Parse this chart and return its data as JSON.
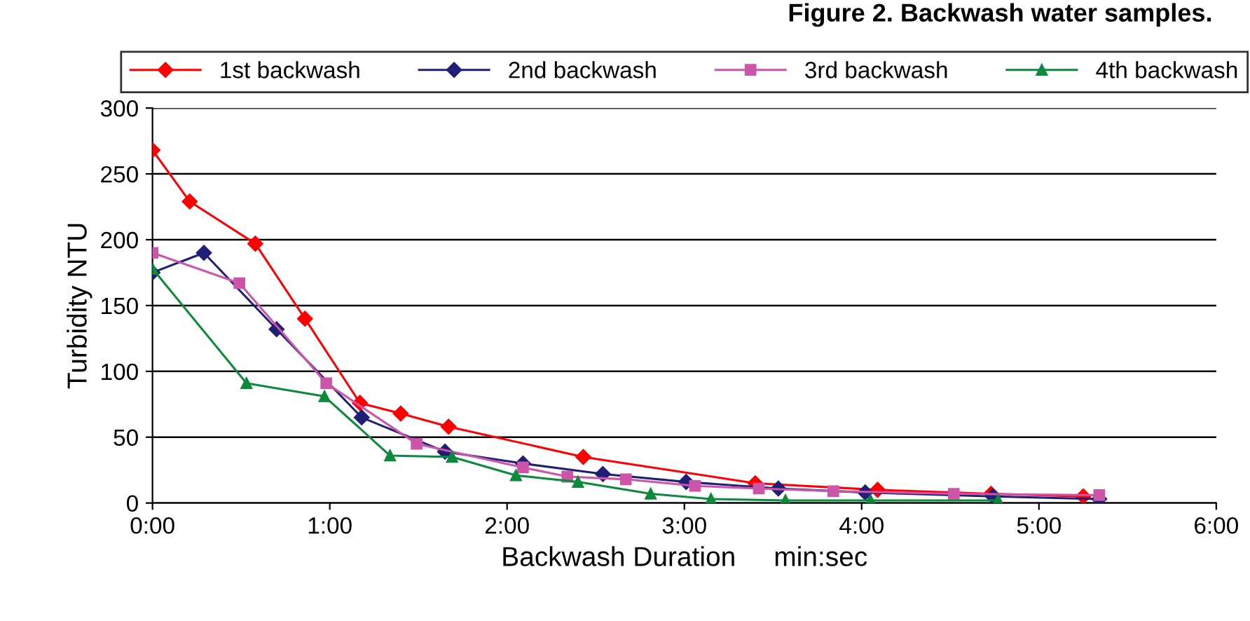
{
  "chart_data": {
    "type": "line",
    "title": "Figure 2. Backwash water samples.",
    "xlabel": "Backwash Duration     min:sec",
    "ylabel": "Turbidity NTU",
    "xlim": [
      0,
      6
    ],
    "xticks": [
      {
        "value": 0,
        "label": "0:00"
      },
      {
        "value": 1,
        "label": "1:00"
      },
      {
        "value": 2,
        "label": "2:00"
      },
      {
        "value": 3,
        "label": "3:00"
      },
      {
        "value": 4,
        "label": "4:00"
      },
      {
        "value": 5,
        "label": "5:00"
      },
      {
        "value": 6,
        "label": "6:00"
      }
    ],
    "ylim": [
      0,
      300
    ],
    "yticks": [
      0,
      50,
      100,
      150,
      200,
      250,
      300
    ],
    "grid": "y",
    "legend": "top",
    "series": [
      {
        "name": "1st backwash",
        "color": "#ff0000",
        "marker": "diamond",
        "x": [
          0,
          0.21,
          0.58,
          0.86,
          1.17,
          1.4,
          1.67,
          2.43,
          3.4,
          4.09,
          4.73,
          5.25
        ],
        "values": [
          268,
          229,
          197,
          140,
          76,
          68,
          58,
          35,
          15,
          10,
          7,
          5
        ]
      },
      {
        "name": "2nd backwash",
        "color": "#1f1f78",
        "marker": "diamond",
        "x": [
          0,
          0.29,
          0.7,
          1.18,
          1.65,
          2.09,
          2.54,
          3.01,
          3.53,
          4.02,
          4.74,
          5.34
        ],
        "values": [
          175,
          190,
          132,
          65,
          39,
          30,
          22,
          16,
          11,
          8,
          5,
          3
        ]
      },
      {
        "name": "3rd backwash",
        "color": "#cc55aa",
        "marker": "square",
        "x": [
          0,
          0.49,
          0.98,
          1.49,
          2.09,
          2.34,
          2.67,
          3.06,
          3.42,
          3.84,
          4.52,
          5.34
        ],
        "values": [
          190,
          167,
          91,
          45,
          27,
          20,
          18,
          13,
          11,
          9,
          7,
          6
        ]
      },
      {
        "name": "4th backwash",
        "color": "#0a8a3a",
        "marker": "triangle",
        "x": [
          0,
          0.53,
          0.97,
          1.34,
          1.69,
          2.05,
          2.4,
          2.81,
          3.15,
          3.57,
          4.05,
          4.77
        ],
        "values": [
          178,
          91,
          81,
          36,
          35,
          21,
          16,
          7,
          3,
          2,
          2,
          2
        ]
      }
    ]
  }
}
